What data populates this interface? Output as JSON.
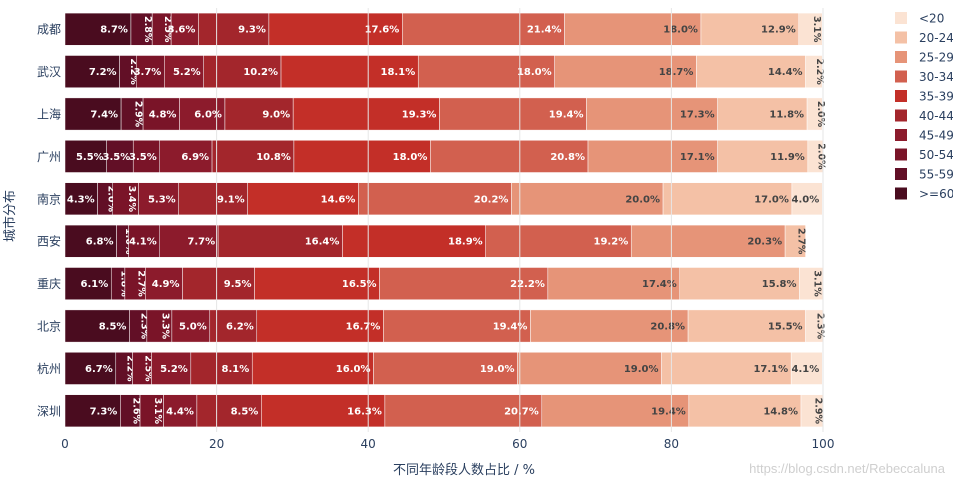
{
  "chart_data": {
    "type": "bar",
    "orientation": "horizontal",
    "stacked": true,
    "xlabel": "不同年龄段人数占比 / %",
    "ylabel": "城市分布",
    "xlim": [
      0,
      100
    ],
    "xticks": [
      0,
      20,
      40,
      60,
      80,
      100
    ],
    "categories": [
      "成都",
      "武汉",
      "上海",
      "广州",
      "南京",
      "西安",
      "重庆",
      "北京",
      "杭州",
      "深圳"
    ],
    "series": [
      {
        "name": ">=60",
        "color": "#4a0c1f",
        "values": [
          8.7,
          7.2,
          7.4,
          5.5,
          4.3,
          6.8,
          6.1,
          8.5,
          6.7,
          7.3
        ]
      },
      {
        "name": "55-59",
        "color": "#620f26",
        "values": [
          2.8,
          2.2,
          2.9,
          3.5,
          2.0,
          1.6,
          1.8,
          2.3,
          2.2,
          2.6
        ]
      },
      {
        "name": "50-54",
        "color": "#7a1428",
        "values": [
          2.5,
          3.7,
          4.8,
          3.5,
          3.4,
          4.1,
          2.7,
          3.3,
          2.5,
          3.1
        ]
      },
      {
        "name": "45-49",
        "color": "#8c1b2c",
        "values": [
          3.6,
          5.2,
          6.0,
          6.9,
          5.3,
          7.7,
          4.9,
          5.0,
          5.2,
          4.4
        ]
      },
      {
        "name": "40-44",
        "color": "#a3262c",
        "values": [
          9.3,
          10.2,
          9.0,
          10.8,
          9.1,
          16.4,
          9.5,
          6.2,
          8.1,
          8.5
        ]
      },
      {
        "name": "35-39",
        "color": "#c32f28",
        "values": [
          17.6,
          18.1,
          19.3,
          18.0,
          14.6,
          18.9,
          16.5,
          16.7,
          16.0,
          16.3
        ]
      },
      {
        "name": "30-34",
        "color": "#d2604f",
        "values": [
          21.4,
          18.0,
          19.4,
          20.8,
          20.2,
          19.2,
          22.2,
          19.4,
          19.0,
          20.7
        ]
      },
      {
        "name": "25-29",
        "color": "#e69478",
        "values": [
          18.0,
          18.7,
          17.3,
          17.1,
          20.0,
          20.3,
          17.4,
          20.8,
          19.0,
          19.4
        ]
      },
      {
        "name": "20-24",
        "color": "#f4c1a6",
        "values": [
          12.9,
          14.4,
          11.8,
          11.9,
          17.0,
          2.7,
          15.8,
          15.5,
          17.1,
          14.8
        ]
      },
      {
        "name": "<20",
        "color": "#fbe3d3",
        "values": [
          3.1,
          2.2,
          2.0,
          2.0,
          4.0,
          0,
          3.1,
          2.3,
          4.1,
          2.9
        ]
      }
    ],
    "segment_labels": [
      [
        "8.7%",
        "2.8%",
        "2.5%",
        "3.6%",
        "9.3%",
        "17.6%",
        "21.4%",
        "18.0%",
        "12.9%",
        "3.1%"
      ],
      [
        "7.2%",
        "2.2%",
        "3.7%",
        "5.2%",
        "10.2%",
        "18.1%",
        "18.0%",
        "18.7%",
        "14.4%",
        "2.2%"
      ],
      [
        "7.4%",
        "2.9%",
        "4.8%",
        "6.0%",
        "9.0%",
        "19.3%",
        "19.4%",
        "17.3%",
        "11.8%",
        "2.0%"
      ],
      [
        "5.5%",
        "3.5%",
        "3.5%",
        "6.9%",
        "10.8%",
        "18.0%",
        "20.8%",
        "17.1%",
        "11.9%",
        "2.0%"
      ],
      [
        "4.3%",
        "2.0%",
        "3.4%",
        "5.3%",
        "9.1%",
        "14.6%",
        "20.2%",
        "20.0%",
        "17.0%",
        "4.0%"
      ],
      [
        "6.8%",
        "1.6%",
        "4.1%",
        "7.7%",
        "16.4%",
        "18.9%",
        "19.2%",
        "20.3%",
        "2.7%",
        ""
      ],
      [
        "6.1%",
        "1.8%",
        "2.7%",
        "4.9%",
        "9.5%",
        "16.5%",
        "22.2%",
        "17.4%",
        "15.8%",
        "3.1%"
      ],
      [
        "8.5%",
        "2.3%",
        "3.3%",
        "5.0%",
        "6.2%",
        "16.7%",
        "19.4%",
        "20.8%",
        "15.5%",
        "2.3%"
      ],
      [
        "6.7%",
        "2.2%",
        "2.5%",
        "5.2%",
        "8.1%",
        "16.0%",
        "19.0%",
        "19.0%",
        "17.1%",
        "4.1%"
      ],
      [
        "7.3%",
        "2.6%",
        "3.1%",
        "4.4%",
        "8.5%",
        "16.3%",
        "20.7%",
        "19.4%",
        "14.8%",
        "2.9%"
      ]
    ],
    "legend": {
      "placement": "right",
      "entries": [
        "<20",
        "20-24",
        "25-29",
        "30-34",
        "35-39",
        "40-44",
        "45-49",
        "50-54",
        "55-59",
        ">=60"
      ]
    }
  },
  "watermark": "https://blog.csdn.net/Rebeccaluna"
}
